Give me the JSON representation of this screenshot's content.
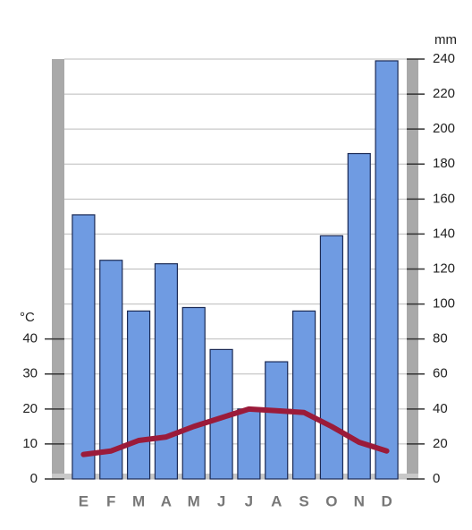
{
  "chart_data": {
    "type": "bar-line",
    "categories": [
      "E",
      "F",
      "M",
      "A",
      "M",
      "J",
      "J",
      "A",
      "S",
      "O",
      "N",
      "D"
    ],
    "series": [
      {
        "name": "mm",
        "color": "#6f9be2",
        "axis": "y2",
        "type": "bar",
        "values": [
          151,
          125,
          96,
          123,
          98,
          74,
          40,
          67,
          96,
          139,
          186,
          239
        ]
      },
      {
        "name": "°C",
        "color": "#9b1b3a",
        "axis": "y",
        "type": "line",
        "values": [
          7,
          8,
          11,
          12,
          15,
          17.5,
          20,
          19.5,
          19,
          15,
          10.5,
          8
        ]
      }
    ],
    "ylim": [
      0,
      120
    ],
    "yticks": [
      0,
      10,
      20,
      30,
      40
    ],
    "y2lim": [
      0,
      240
    ],
    "y2ticks": [
      0,
      20,
      40,
      60,
      80,
      100,
      120,
      140,
      160,
      180,
      200,
      220,
      240
    ],
    "grid": true
  }
}
